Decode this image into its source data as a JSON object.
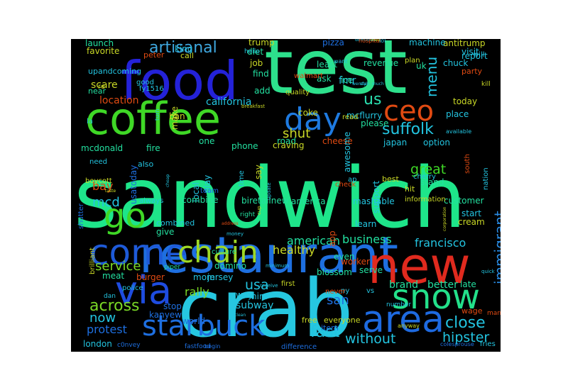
{
  "words": [
    {
      "text": "sandwich",
      "color": "#1ee58a"
    },
    {
      "text": "test",
      "color": "#2de08c"
    },
    {
      "text": "crab",
      "color": "#26c7e0"
    },
    {
      "text": "restaurant",
      "color": "#1e6fe0"
    },
    {
      "text": "food",
      "color": "#2422d8"
    },
    {
      "text": "coffee",
      "color": "#3fd826"
    },
    {
      "text": "new",
      "color": "#e02a1e"
    },
    {
      "text": "ceo",
      "color": "#e04a12"
    },
    {
      "text": "day",
      "color": "#1e7ae0"
    },
    {
      "text": "work",
      "color": "#21c7a0"
    },
    {
      "text": "area",
      "color": "#1e6ae0"
    },
    {
      "text": "come",
      "color": "#1e5ad8"
    },
    {
      "text": "chain",
      "color": "#9ed826"
    },
    {
      "text": "go",
      "color": "#3fd826"
    },
    {
      "text": "via",
      "color": "#1e4ce0"
    },
    {
      "text": "snow",
      "color": "#23e08a"
    },
    {
      "text": "starbuck",
      "color": "#1e6fe0"
    },
    {
      "text": "suffolk",
      "color": "#23c4e0"
    },
    {
      "text": "artisanal",
      "color": "#3fa8e0"
    },
    {
      "text": "us",
      "color": "#2ae0b0"
    },
    {
      "text": "immigrant",
      "color": "#2a8ae0"
    },
    {
      "text": "usa",
      "color": "#23c4e0"
    },
    {
      "text": "close",
      "color": "#23c4e0"
    },
    {
      "text": "across",
      "color": "#7ad826"
    },
    {
      "text": "fast",
      "color": "#23c4e0"
    },
    {
      "text": "without",
      "color": "#23c4e0"
    },
    {
      "text": "hipster",
      "color": "#23c4e0"
    },
    {
      "text": "service",
      "color": "#7ad826"
    },
    {
      "text": "protest",
      "color": "#1e6fe0"
    },
    {
      "text": "now",
      "color": "#23c4e0"
    },
    {
      "text": "menu",
      "color": "#23c4e0"
    },
    {
      "text": "shut",
      "color": "#c9d826"
    },
    {
      "text": "great",
      "color": "#3fd826"
    },
    {
      "text": "francisco",
      "color": "#23c4e0"
    },
    {
      "text": "business",
      "color": "#23e0a0"
    },
    {
      "text": "healthy",
      "color": "#c9d826"
    },
    {
      "text": "american",
      "color": "#23e0a0"
    },
    {
      "text": "rally",
      "color": "#7ad826"
    },
    {
      "text": "bay",
      "color": "#e04a12"
    },
    {
      "text": "mcd",
      "color": "#23c4e0"
    },
    {
      "text": "location",
      "color": "#e04a12"
    },
    {
      "text": "scare",
      "color": "#c9d826"
    },
    {
      "text": "california",
      "color": "#23c4e0"
    },
    {
      "text": "mcdonald",
      "color": "#23e0a0"
    },
    {
      "text": "fire",
      "color": "#23e0a0"
    },
    {
      "text": "usatoday",
      "color": "#1e6fe0"
    },
    {
      "text": "local",
      "color": "#23c4e0"
    },
    {
      "text": "play",
      "color": "#23c4e0"
    },
    {
      "text": "fmr",
      "color": "#23c4e0"
    },
    {
      "text": "san",
      "color": "#1e6fe0"
    },
    {
      "text": "brand",
      "color": "#23e0a0"
    },
    {
      "text": "better",
      "color": "#23e0a0"
    },
    {
      "text": "late",
      "color": "#23e0a0"
    },
    {
      "text": "wage",
      "color": "#e04a12"
    },
    {
      "text": "subway",
      "color": "#23c4e0"
    },
    {
      "text": "london",
      "color": "#23c4e0"
    },
    {
      "text": "hire",
      "color": "#23c4e0"
    },
    {
      "text": "way",
      "color": "#23c4e0"
    },
    {
      "text": "mom",
      "color": "#23c4e0"
    },
    {
      "text": "meat",
      "color": "#23e0a0"
    },
    {
      "text": "burger",
      "color": "#e04a12"
    },
    {
      "text": "stop",
      "color": "#1e6fe0"
    },
    {
      "text": "kanyew",
      "color": "#1e6fe0"
    },
    {
      "text": "jersey",
      "color": "#23c4e0"
    },
    {
      "text": "world",
      "color": "#1e6fe0"
    },
    {
      "text": "free",
      "color": "#c9d826"
    },
    {
      "text": "everyone",
      "color": "#c9d826"
    },
    {
      "text": "item",
      "color": "#1e6fe0"
    },
    {
      "text": "difference",
      "color": "#1e6fe0"
    },
    {
      "text": "fastfood",
      "color": "#1e6fe0"
    },
    {
      "text": "begin",
      "color": "#1e6fe0"
    },
    {
      "text": "c0nvey",
      "color": "#1e6fe0"
    },
    {
      "text": "colesprouse",
      "color": "#1e6fe0"
    },
    {
      "text": "fries",
      "color": "#23c4e0"
    },
    {
      "text": "man",
      "color": "#e04a12"
    },
    {
      "text": "start",
      "color": "#23c4e0"
    },
    {
      "text": "customer",
      "color": "#23e0a0"
    },
    {
      "text": "cream",
      "color": "#c9d826"
    },
    {
      "text": "information",
      "color": "#c9d826"
    },
    {
      "text": "stand",
      "color": "#23e0a0"
    },
    {
      "text": "hit",
      "color": "#c9d826"
    },
    {
      "text": "support",
      "color": "#23c4e0"
    },
    {
      "text": "best",
      "color": "#c9d826"
    },
    {
      "text": "cherry",
      "color": "#23c4e0"
    },
    {
      "text": "japan",
      "color": "#23c4e0"
    },
    {
      "text": "option",
      "color": "#23c4e0"
    },
    {
      "text": "place",
      "color": "#23c4e0"
    },
    {
      "text": "today",
      "color": "#c9d826"
    },
    {
      "text": "party",
      "color": "#e04a12"
    },
    {
      "text": "report",
      "color": "#23c4e0"
    },
    {
      "text": "will",
      "color": "#23c4e0"
    },
    {
      "text": "chuck",
      "color": "#23c4e0"
    },
    {
      "text": "antitrump",
      "color": "#c9d826"
    },
    {
      "text": "machine",
      "color": "#23c4e0"
    },
    {
      "text": "pizza",
      "color": "#1e6fe0"
    },
    {
      "text": "trump",
      "color": "#c9d826"
    },
    {
      "text": "diet",
      "color": "#23e0a0"
    },
    {
      "text": "job",
      "color": "#c9d826"
    },
    {
      "text": "find",
      "color": "#23e0a0"
    },
    {
      "text": "add",
      "color": "#23e0a0"
    },
    {
      "text": "call",
      "color": "#c9d826"
    },
    {
      "text": "favorite",
      "color": "#c9d826"
    },
    {
      "text": "launch",
      "color": "#23e0a0"
    },
    {
      "text": "upandcoming",
      "color": "#23c4e0"
    },
    {
      "text": "near",
      "color": "#23e0a0"
    },
    {
      "text": "least",
      "color": "#23e0a0"
    },
    {
      "text": "ask",
      "color": "#23e0a0"
    },
    {
      "text": "ice",
      "color": "#23e0a0"
    },
    {
      "text": "revenue",
      "color": "#23e0a0"
    },
    {
      "text": "uk",
      "color": "#23e0a0"
    },
    {
      "text": "plan",
      "color": "#c9d826"
    },
    {
      "text": "coke",
      "color": "#c9d826"
    },
    {
      "text": "mcflurry",
      "color": "#23c4e0"
    },
    {
      "text": "please",
      "color": "#23e0a0"
    },
    {
      "text": "road",
      "color": "#23e0a0"
    },
    {
      "text": "cheese",
      "color": "#e04a12"
    },
    {
      "text": "craving",
      "color": "#c9d826"
    },
    {
      "text": "phone",
      "color": "#23e0a0"
    },
    {
      "text": "one",
      "color": "#23e0a0"
    },
    {
      "text": "make",
      "color": "#c9d826"
    },
    {
      "text": "ban",
      "color": "#c9d826"
    },
    {
      "text": "peter",
      "color": "#e04a12"
    },
    {
      "text": "fy1516",
      "color": "#23c4e0"
    },
    {
      "text": "good",
      "color": "#23c4e0"
    },
    {
      "text": "la",
      "color": "#23c4e0"
    },
    {
      "text": "need",
      "color": "#23c4e0"
    },
    {
      "text": "also",
      "color": "#23c4e0"
    },
    {
      "text": "boycott",
      "color": "#c9d826"
    },
    {
      "text": "always",
      "color": "#23c4e0"
    },
    {
      "text": "combine",
      "color": "#23e0a0"
    },
    {
      "text": "biretailnew",
      "color": "#23e0a0"
    },
    {
      "text": "america",
      "color": "#23e0a0"
    },
    {
      "text": "mashable",
      "color": "#23c4e0"
    },
    {
      "text": "shutter",
      "color": "#1e6fe0"
    },
    {
      "text": "combined",
      "color": "#23c4e0"
    },
    {
      "text": "give",
      "color": "#23e0a0"
    },
    {
      "text": "right",
      "color": "#23e0a0"
    },
    {
      "text": "learn",
      "color": "#23c4e0"
    },
    {
      "text": "app",
      "color": "#e04a12"
    },
    {
      "text": "even",
      "color": "#23e0a0"
    },
    {
      "text": "serve",
      "color": "#23e0a0"
    },
    {
      "text": "worker",
      "color": "#e04a12"
    },
    {
      "text": "blossom",
      "color": "#23e0a0"
    },
    {
      "text": "domino",
      "color": "#23e0a0"
    },
    {
      "text": "culture",
      "color": "#23e0a0"
    },
    {
      "text": "brilliant",
      "color": "#c9d826"
    },
    {
      "text": "piper",
      "color": "#23e0a0"
    },
    {
      "text": "dan",
      "color": "#23c4e0"
    },
    {
      "text": "police",
      "color": "#23c4e0"
    },
    {
      "text": "ny",
      "color": "#23c4e0"
    },
    {
      "text": "vs",
      "color": "#23c4e0"
    },
    {
      "text": "number",
      "color": "#23c4e0"
    },
    {
      "text": "anyway",
      "color": "#c9d826"
    },
    {
      "text": "first",
      "color": "#c9d826"
    },
    {
      "text": "never",
      "color": "#e04a12"
    },
    {
      "text": "awesome",
      "color": "#23c4e0"
    },
    {
      "text": "say",
      "color": "#c9d826"
    },
    {
      "text": "check",
      "color": "#e04a12"
    },
    {
      "text": "ap",
      "color": "#23c4e0"
    },
    {
      "text": "team",
      "color": "#1e6fe0"
    },
    {
      "text": "time",
      "color": "#23c4e0"
    },
    {
      "text": "hello",
      "color": "#23c4e0"
    },
    {
      "text": "king",
      "color": "#23c4e0"
    },
    {
      "text": "walmart",
      "color": "#e04a12"
    },
    {
      "text": "quality",
      "color": "#c9d826"
    },
    {
      "text": "read",
      "color": "#c9d826"
    },
    {
      "text": "south",
      "color": "#e04a12"
    },
    {
      "text": "nation",
      "color": "#23c4e0"
    },
    {
      "text": "available",
      "color": "#23c4e0"
    },
    {
      "text": "kill",
      "color": "#c9d826"
    },
    {
      "text": "quick",
      "color": "#23c4e0"
    },
    {
      "text": "visit",
      "color": "#23c4e0"
    },
    {
      "text": "re",
      "color": "#c9d826"
    },
    {
      "text": "want",
      "color": "#23c4e0"
    },
    {
      "text": "stab",
      "color": "#23c4e0"
    },
    {
      "text": "much",
      "color": "#23c4e0"
    },
    {
      "text": "wendy",
      "color": "#23c4e0"
    },
    {
      "text": "breakfast",
      "color": "#c9d826"
    },
    {
      "text": "turn",
      "color": "#23c4e0"
    },
    {
      "text": "taste",
      "color": "#c9d826"
    },
    {
      "text": "cheap",
      "color": "#23c4e0"
    },
    {
      "text": "money",
      "color": "#23c4e0"
    },
    {
      "text": "cup",
      "color": "#c9d826"
    },
    {
      "text": "update",
      "color": "#23c4e0"
    },
    {
      "text": "minimum",
      "color": "#23c4e0"
    },
    {
      "text": "receive",
      "color": "#23c4e0"
    },
    {
      "text": "clean",
      "color": "#23c4e0"
    },
    {
      "text": "address",
      "color": "#e04a12"
    },
    {
      "text": "corporation",
      "color": "#c9d826"
    },
    {
      "text": "download",
      "color": "#23c4e0"
    },
    {
      "text": "hospital",
      "color": "#e04a12"
    },
    {
      "text": "mad",
      "color": "#c9d826"
    },
    {
      "text": "lol",
      "color": "#23c4e0"
    },
    {
      "text": "head",
      "color": "#e04a12"
    }
  ]
}
